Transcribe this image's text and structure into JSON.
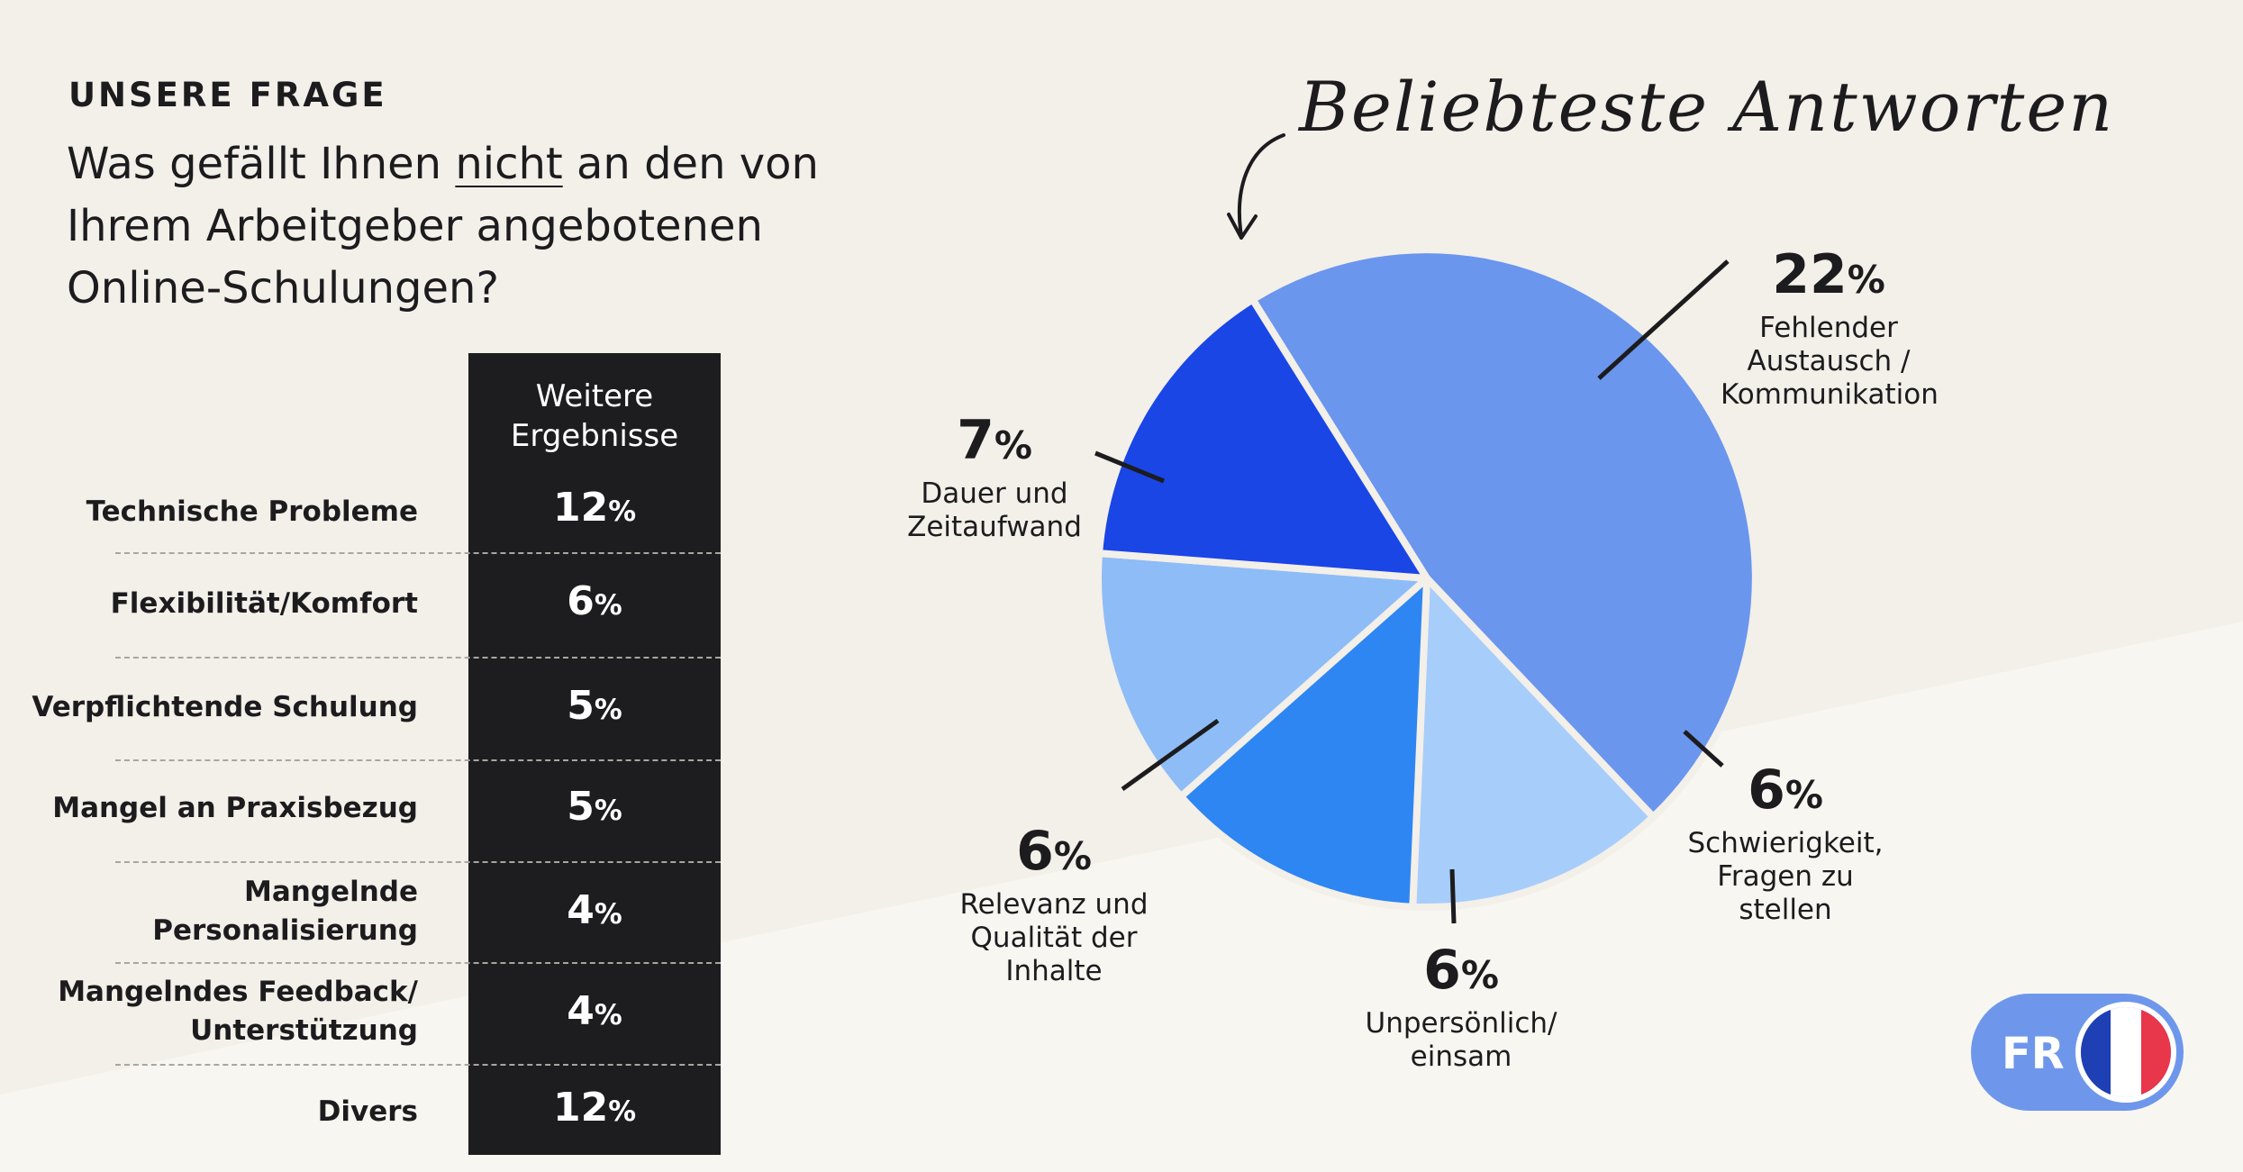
{
  "heading": {
    "eyebrow": "UNSERE FRAGE",
    "q_pre": "Was gefällt Ihnen ",
    "q_em": "nicht",
    "q_post": " an den von Ihrem Arbeitgeber angebotenen Online-Schulungen?"
  },
  "table": {
    "header": "Weitere Ergebnisse",
    "rows": [
      {
        "label": "Technische Probleme",
        "value": "12",
        "unit": "%"
      },
      {
        "label": "Flexibilität/Komfort",
        "value": "6",
        "unit": "%"
      },
      {
        "label": "Verpflichtende Schulung",
        "value": "5",
        "unit": "%"
      },
      {
        "label": "Mangel an Praxisbezug",
        "value": "5",
        "unit": "%"
      },
      {
        "label": "Mangelnde Personalisierung",
        "value": "4",
        "unit": "%"
      },
      {
        "label": "Mangelndes Feedback/ Unterstützung",
        "value": "4",
        "unit": "%"
      },
      {
        "label": "Divers",
        "value": "12",
        "unit": "%"
      }
    ]
  },
  "handwritten_title": "Beliebteste Antworten",
  "chart_data": {
    "type": "pie",
    "title": "Beliebteste Antworten",
    "unit": "%",
    "slices": [
      {
        "label": "Fehlender Austausch / Kommunikation",
        "value": 22,
        "color": "#6a96ee"
      },
      {
        "label": "Schwierigkeit, Fragen zu stellen",
        "value": 6,
        "color": "#a7cdfb"
      },
      {
        "label": "Unpersönlich/ einsam",
        "value": 6,
        "color": "#2e86f2"
      },
      {
        "label": "Relevanz und Qualität der Inhalte",
        "value": 6,
        "color": "#8ebcf6"
      },
      {
        "label": "Dauer und Zeitaufwand",
        "value": 7,
        "color": "#1a46e6"
      }
    ]
  },
  "language": {
    "code": "FR",
    "flag_colors": [
      "#1f3fb4",
      "#ffffff",
      "#e8364a"
    ]
  },
  "colors": {
    "background": "#f3efe9",
    "lower_band": "#f8f6f1",
    "table_dark": "#1d1d1f"
  }
}
